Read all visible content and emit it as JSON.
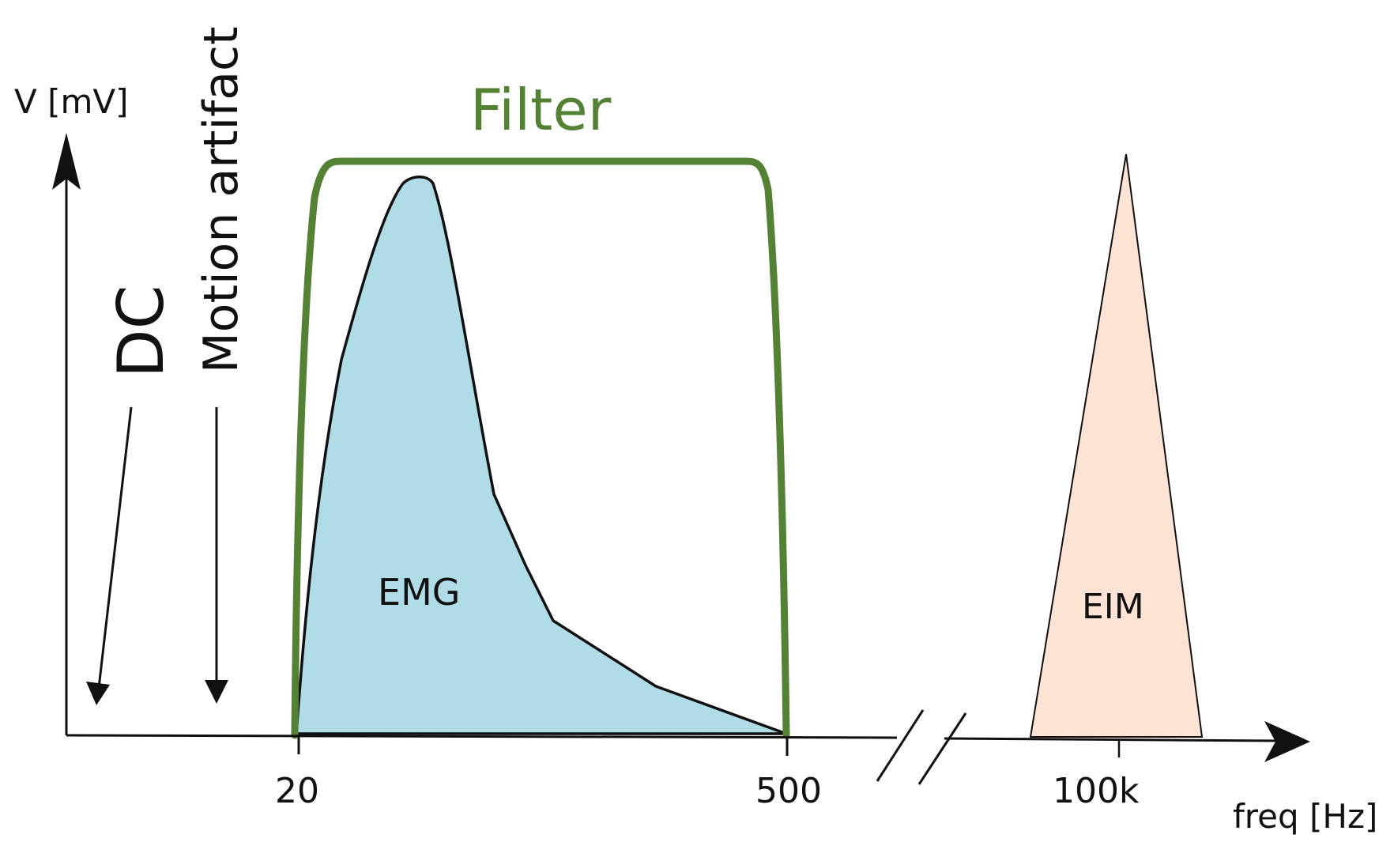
{
  "labels": {
    "y_axis": "V [mV]",
    "x_axis": "freq [Hz]",
    "filter": "Filter",
    "emg": "EMG",
    "eim": "EIM",
    "dc": "DC",
    "motion_artifact": "Motion artifact"
  },
  "ticks": [
    "20",
    "500",
    "100k"
  ],
  "colors": {
    "filter": "#548235",
    "emg_fill": "#b0dce8",
    "eim_fill": "#fde3d3",
    "ink": "#111111"
  }
}
